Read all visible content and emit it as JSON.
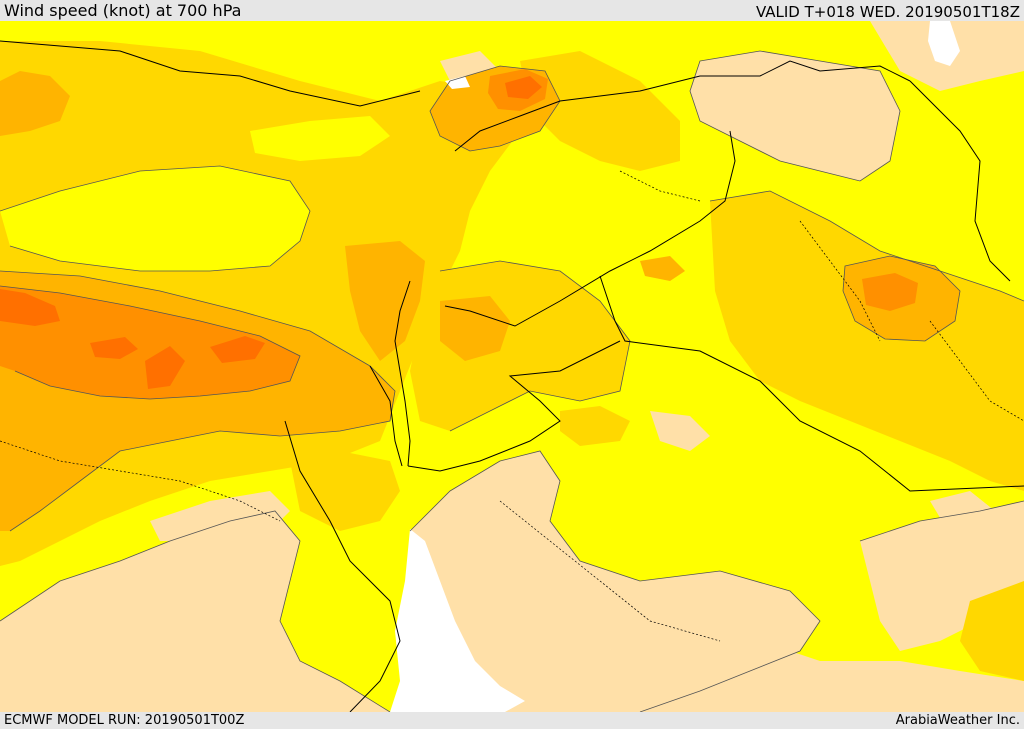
{
  "header": {
    "title": "Wind speed (knot) at 700 hPa",
    "valid": "VALID T+018 WED. 20190501T18Z"
  },
  "footer": {
    "model_run": "ECMWF MODEL RUN: 20190501T00Z",
    "credit": "ArabiaWeather Inc."
  },
  "map": {
    "colors": {
      "calm": "#ffe0a8",
      "light": "#ffff00",
      "moderate": "#ffd800",
      "fresh": "#ffb400",
      "strong": "#ff9000",
      "very_strong": "#ff7000",
      "sea_white": "#ffffff",
      "contour": "#555555",
      "border": "#000000"
    }
  }
}
